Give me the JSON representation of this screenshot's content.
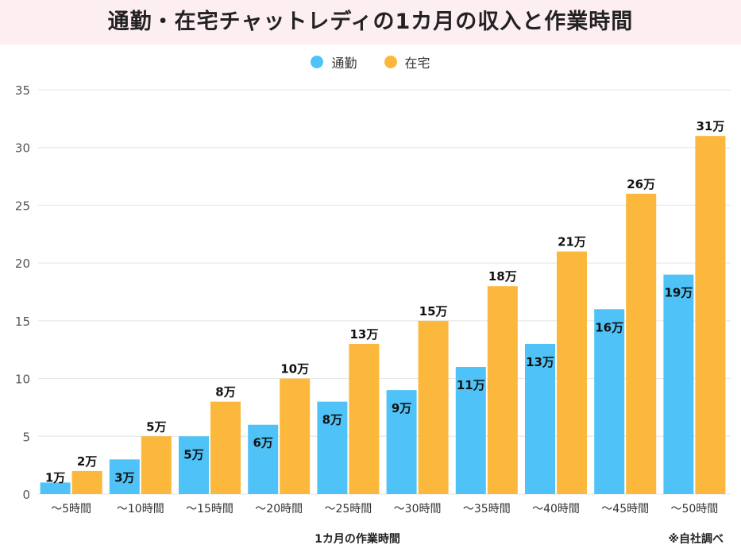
{
  "title": "通勤・在宅チャットレディの1カ月の収入と作業時間",
  "source_note": "※自社調べ",
  "colors": {
    "commute": "#4fc3f7",
    "home": "#fbb83c",
    "grid": "#e4e4e4",
    "band": "#fdeef2"
  },
  "chart_data": {
    "type": "bar",
    "title": "通勤・在宅チャットレディの1カ月の収入と作業時間",
    "xlabel": "1カ月の作業時間",
    "ylabel": "",
    "ylim": [
      0,
      35
    ],
    "yticks": [
      0,
      5,
      10,
      15,
      20,
      25,
      30,
      35
    ],
    "grid": true,
    "legend_position": "top-center",
    "categories": [
      "～5時間",
      "～10時間",
      "～15時間",
      "～20時間",
      "～25時間",
      "～30時間",
      "～35時間",
      "～40時間",
      "～45時間",
      "～50時間"
    ],
    "series": [
      {
        "name": "通勤",
        "color": "#4fc3f7",
        "values": [
          1,
          3,
          5,
          6,
          8,
          9,
          11,
          13,
          16,
          19
        ],
        "labels": [
          "1万",
          "3万",
          "5万",
          "6万",
          "8万",
          "9万",
          "11万",
          "13万",
          "16万",
          "19万"
        ]
      },
      {
        "name": "在宅",
        "color": "#fbb83c",
        "values": [
          2,
          5,
          8,
          10,
          13,
          15,
          18,
          21,
          26,
          31
        ],
        "labels": [
          "2万",
          "5万",
          "8万",
          "10万",
          "13万",
          "15万",
          "18万",
          "21万",
          "26万",
          "31万"
        ]
      }
    ]
  }
}
